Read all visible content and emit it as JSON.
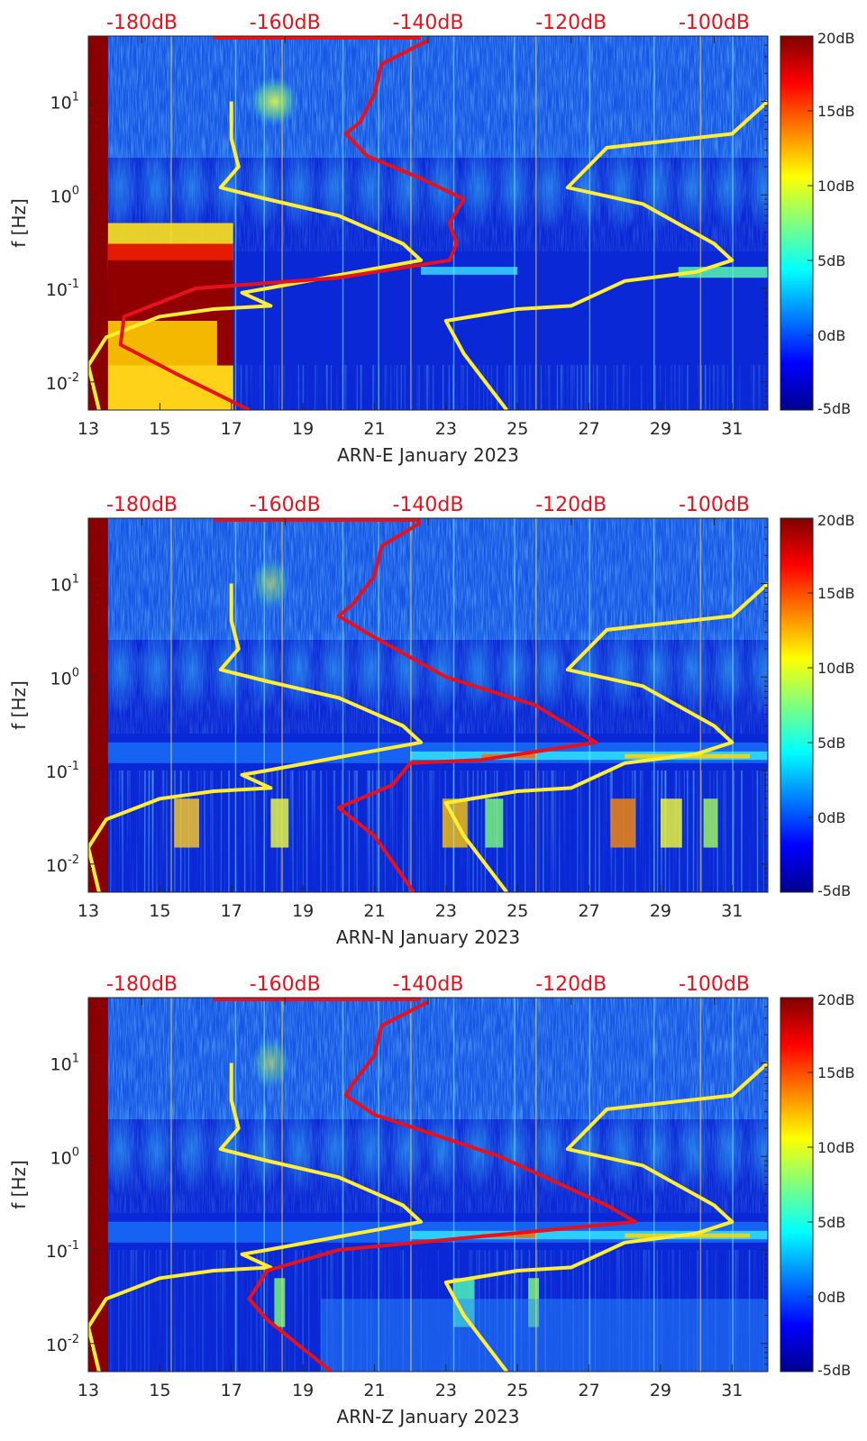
{
  "chart_data": [
    {
      "type": "heatmap",
      "title": "",
      "xlabel": "ARN-E January 2023",
      "ylabel": "f [Hz]",
      "xlim": [
        13,
        32
      ],
      "ylim": [
        0.005,
        50
      ],
      "y_scale": "log",
      "x_ticks": [
        "13",
        "15",
        "17",
        "19",
        "21",
        "23",
        "25",
        "27",
        "29",
        "31"
      ],
      "x_tick_values": [
        13,
        15,
        17,
        19,
        21,
        23,
        25,
        27,
        29,
        31
      ],
      "y_ticks": [
        {
          "base": "10",
          "exp": "1",
          "value": 10
        },
        {
          "base": "10",
          "exp": "0",
          "value": 1
        },
        {
          "base": "10",
          "exp": "-1",
          "value": 0.1
        },
        {
          "base": "10",
          "exp": "-2",
          "value": 0.01
        }
      ],
      "top_axis": {
        "labels": [
          "-180dB",
          "-160dB",
          "-140dB",
          "-120dB",
          "-100dB"
        ],
        "x_values": [
          14.5,
          18.5,
          22.5,
          26.5,
          30.5
        ]
      },
      "colorbar": {
        "range": [
          -5,
          20
        ],
        "labels": [
          "20dB",
          "15dB",
          "10dB",
          "5dB",
          "0dB",
          "-5dB"
        ],
        "values": [
          20,
          15,
          10,
          5,
          0,
          -5
        ]
      },
      "series": [
        {
          "name": "yellow reference curve",
          "color": "#ffee33",
          "points": [
            [
              17,
              10
            ],
            [
              17,
              4
            ],
            [
              17.2,
              2
            ],
            [
              16.7,
              1.2
            ],
            [
              18,
              0.9
            ],
            [
              20,
              0.6
            ],
            [
              21.8,
              0.3
            ],
            [
              22.3,
              0.2
            ],
            [
              20.5,
              0.15
            ],
            [
              18,
              0.1
            ],
            [
              17.3,
              0.09
            ],
            [
              18.1,
              0.065
            ],
            [
              16.5,
              0.06
            ],
            [
              15,
              0.05
            ],
            [
              13.5,
              0.03
            ],
            [
              13,
              0.015
            ],
            [
              13.3,
              0.005
            ]
          ]
        },
        {
          "name": "yellow reference curve (shifted)",
          "color": "#ffee33",
          "points": [
            [
              32,
              10
            ],
            [
              31,
              4.5
            ],
            [
              27.5,
              3.2
            ],
            [
              26.4,
              1.2
            ],
            [
              28.5,
              0.8
            ],
            [
              30.5,
              0.3
            ],
            [
              31,
              0.2
            ],
            [
              30,
              0.15
            ],
            [
              28,
              0.12
            ],
            [
              26.5,
              0.065
            ],
            [
              25,
              0.06
            ],
            [
              23,
              0.045
            ],
            [
              23.5,
              0.02
            ],
            [
              24.7,
              0.005
            ]
          ]
        },
        {
          "name": "red noise curve",
          "color": "#e8101a",
          "points": [
            [
              22.5,
              45
            ],
            [
              21.2,
              25
            ],
            [
              21,
              12
            ],
            [
              20.6,
              6
            ],
            [
              20.2,
              4.5
            ],
            [
              20.8,
              2.6
            ],
            [
              22.3,
              1.5
            ],
            [
              23.5,
              0.9
            ],
            [
              23.1,
              0.5
            ],
            [
              23.3,
              0.3
            ],
            [
              23.1,
              0.2
            ],
            [
              20,
              0.13
            ],
            [
              16,
              0.1
            ],
            [
              14,
              0.05
            ],
            [
              13.9,
              0.025
            ],
            [
              15.5,
              0.012
            ],
            [
              17.5,
              0.005
            ]
          ]
        }
      ]
    },
    {
      "type": "heatmap",
      "title": "",
      "xlabel": "ARN-N January 2023",
      "ylabel": "f [Hz]",
      "xlim": [
        13,
        32
      ],
      "ylim": [
        0.005,
        50
      ],
      "y_scale": "log",
      "x_ticks": [
        "13",
        "15",
        "17",
        "19",
        "21",
        "23",
        "25",
        "27",
        "29",
        "31"
      ],
      "x_tick_values": [
        13,
        15,
        17,
        19,
        21,
        23,
        25,
        27,
        29,
        31
      ],
      "y_ticks": [
        {
          "base": "10",
          "exp": "1",
          "value": 10
        },
        {
          "base": "10",
          "exp": "0",
          "value": 1
        },
        {
          "base": "10",
          "exp": "-1",
          "value": 0.1
        },
        {
          "base": "10",
          "exp": "-2",
          "value": 0.01
        }
      ],
      "top_axis": {
        "labels": [
          "-180dB",
          "-160dB",
          "-140dB",
          "-120dB",
          "-100dB"
        ],
        "x_values": [
          14.5,
          18.5,
          22.5,
          26.5,
          30.5
        ]
      },
      "colorbar": {
        "range": [
          -5,
          20
        ],
        "labels": [
          "20dB",
          "15dB",
          "10dB",
          "5dB",
          "0dB",
          "-5dB"
        ],
        "values": [
          20,
          15,
          10,
          5,
          0,
          -5
        ]
      },
      "series": [
        {
          "name": "yellow reference curve",
          "color": "#ffee33",
          "points": [
            [
              17,
              10
            ],
            [
              17,
              4
            ],
            [
              17.2,
              2
            ],
            [
              16.7,
              1.2
            ],
            [
              18,
              0.9
            ],
            [
              20,
              0.6
            ],
            [
              21.8,
              0.3
            ],
            [
              22.3,
              0.2
            ],
            [
              20.5,
              0.15
            ],
            [
              18,
              0.1
            ],
            [
              17.3,
              0.09
            ],
            [
              18.1,
              0.065
            ],
            [
              16.5,
              0.06
            ],
            [
              15,
              0.05
            ],
            [
              13.5,
              0.03
            ],
            [
              13,
              0.015
            ],
            [
              13.3,
              0.005
            ]
          ]
        },
        {
          "name": "yellow reference curve (shifted)",
          "color": "#ffee33",
          "points": [
            [
              32,
              10
            ],
            [
              31,
              4.5
            ],
            [
              27.5,
              3.2
            ],
            [
              26.4,
              1.2
            ],
            [
              28.5,
              0.8
            ],
            [
              30.5,
              0.3
            ],
            [
              31,
              0.2
            ],
            [
              30,
              0.15
            ],
            [
              28,
              0.12
            ],
            [
              26.5,
              0.065
            ],
            [
              25,
              0.06
            ],
            [
              23,
              0.045
            ],
            [
              23.5,
              0.02
            ],
            [
              24.7,
              0.005
            ]
          ]
        },
        {
          "name": "red noise curve",
          "color": "#e8101a",
          "points": [
            [
              22.3,
              45
            ],
            [
              21.2,
              25
            ],
            [
              21,
              12
            ],
            [
              20.4,
              6
            ],
            [
              20,
              4.5
            ],
            [
              20.9,
              2.8
            ],
            [
              23,
              1
            ],
            [
              25.5,
              0.5
            ],
            [
              27.2,
              0.2
            ],
            [
              24,
              0.13
            ],
            [
              22,
              0.12
            ],
            [
              21.5,
              0.07
            ],
            [
              20,
              0.04
            ],
            [
              21,
              0.02
            ],
            [
              22.1,
              0.005
            ]
          ]
        }
      ]
    },
    {
      "type": "heatmap",
      "title": "",
      "xlabel": "ARN-Z January 2023",
      "ylabel": "f [Hz]",
      "xlim": [
        13,
        32
      ],
      "ylim": [
        0.005,
        50
      ],
      "y_scale": "log",
      "x_ticks": [
        "13",
        "15",
        "17",
        "19",
        "21",
        "23",
        "25",
        "27",
        "29",
        "31"
      ],
      "x_tick_values": [
        13,
        15,
        17,
        19,
        21,
        23,
        25,
        27,
        29,
        31
      ],
      "y_ticks": [
        {
          "base": "10",
          "exp": "1",
          "value": 10
        },
        {
          "base": "10",
          "exp": "0",
          "value": 1
        },
        {
          "base": "10",
          "exp": "-1",
          "value": 0.1
        },
        {
          "base": "10",
          "exp": "-2",
          "value": 0.01
        }
      ],
      "top_axis": {
        "labels": [
          "-180dB",
          "-160dB",
          "-140dB",
          "-120dB",
          "-100dB"
        ],
        "x_values": [
          14.5,
          18.5,
          22.5,
          26.5,
          30.5
        ]
      },
      "colorbar": {
        "range": [
          -5,
          20
        ],
        "labels": [
          "20dB",
          "15dB",
          "10dB",
          "5dB",
          "0dB",
          "-5dB"
        ],
        "values": [
          20,
          15,
          10,
          5,
          0,
          -5
        ]
      },
      "series": [
        {
          "name": "yellow reference curve",
          "color": "#ffee33",
          "points": [
            [
              17,
              10
            ],
            [
              17,
              4
            ],
            [
              17.2,
              2
            ],
            [
              16.7,
              1.2
            ],
            [
              18,
              0.9
            ],
            [
              20,
              0.6
            ],
            [
              21.8,
              0.3
            ],
            [
              22.3,
              0.2
            ],
            [
              20.5,
              0.15
            ],
            [
              18,
              0.1
            ],
            [
              17.3,
              0.09
            ],
            [
              18.1,
              0.065
            ],
            [
              16.5,
              0.06
            ],
            [
              15,
              0.05
            ],
            [
              13.5,
              0.03
            ],
            [
              13,
              0.015
            ],
            [
              13.3,
              0.005
            ]
          ]
        },
        {
          "name": "yellow reference curve (shifted)",
          "color": "#ffee33",
          "points": [
            [
              32,
              10
            ],
            [
              31,
              4.5
            ],
            [
              27.5,
              3.2
            ],
            [
              26.4,
              1.2
            ],
            [
              28.5,
              0.8
            ],
            [
              30.5,
              0.3
            ],
            [
              31,
              0.2
            ],
            [
              30,
              0.15
            ],
            [
              28,
              0.12
            ],
            [
              26.5,
              0.065
            ],
            [
              25,
              0.06
            ],
            [
              23,
              0.045
            ],
            [
              23.5,
              0.02
            ],
            [
              24.7,
              0.005
            ]
          ]
        },
        {
          "name": "red noise curve",
          "color": "#e8101a",
          "points": [
            [
              22.5,
              45
            ],
            [
              21.2,
              25
            ],
            [
              21,
              12
            ],
            [
              20.4,
              6
            ],
            [
              20.2,
              4.5
            ],
            [
              21,
              2.8
            ],
            [
              24.5,
              1
            ],
            [
              27.5,
              0.3
            ],
            [
              28.3,
              0.2
            ],
            [
              24,
              0.14
            ],
            [
              20,
              0.1
            ],
            [
              18,
              0.06
            ],
            [
              17.5,
              0.03
            ],
            [
              18,
              0.018
            ],
            [
              19.8,
              0.005
            ]
          ]
        }
      ]
    }
  ]
}
